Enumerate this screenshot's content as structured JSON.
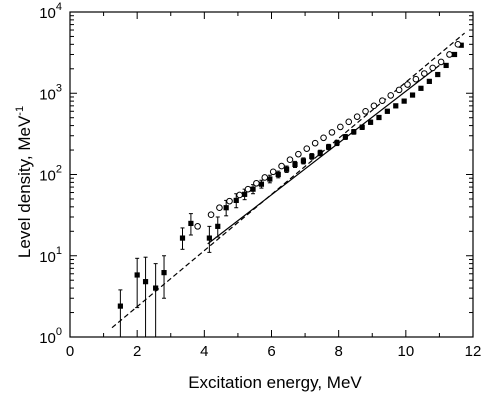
{
  "chart_data": {
    "type": "scatter",
    "xlabel": "Excitation energy, MeV",
    "ylabel_main": "Level density, MeV",
    "ylabel_exp": "-1",
    "xlim": [
      0,
      12
    ],
    "ylim": [
      1,
      10000
    ],
    "yscale": "log",
    "grid": false,
    "x_ticks": [
      {
        "value": 0,
        "label": "0"
      },
      {
        "value": 2,
        "label": "2"
      },
      {
        "value": 4,
        "label": "4"
      },
      {
        "value": 6,
        "label": "6"
      },
      {
        "value": 8,
        "label": "8"
      },
      {
        "value": 10,
        "label": "10"
      },
      {
        "value": 12,
        "label": "12"
      }
    ],
    "y_ticks": [
      {
        "value": 1,
        "base": "10",
        "exp": "0"
      },
      {
        "value": 10,
        "base": "10",
        "exp": "1"
      },
      {
        "value": 100,
        "base": "10",
        "exp": "2"
      },
      {
        "value": 1000,
        "base": "10",
        "exp": "3"
      },
      {
        "value": 10000,
        "base": "10",
        "exp": "4"
      }
    ],
    "series": [
      {
        "marker": "filled-square",
        "x": [
          1.5,
          2.0,
          2.25,
          2.55,
          2.8,
          3.35,
          3.6,
          4.15,
          4.4,
          4.65,
          4.95,
          5.2,
          5.45,
          5.7,
          5.95,
          6.2,
          6.45,
          6.7,
          6.95,
          7.2,
          7.45,
          7.7,
          7.95,
          8.2,
          8.45,
          8.7,
          8.95,
          9.2,
          9.45,
          9.7,
          9.95,
          10.2,
          10.45,
          10.7,
          10.95,
          11.2,
          11.45,
          11.65
        ],
        "y": [
          2.4,
          5.8,
          4.8,
          4.0,
          6.2,
          16.5,
          25,
          16.5,
          23,
          39,
          48,
          57,
          66,
          76,
          88,
          100,
          116,
          133,
          147,
          167,
          184,
          218,
          245,
          290,
          335,
          382,
          440,
          503,
          600,
          700,
          800,
          950,
          1150,
          1400,
          1700,
          2200,
          3000,
          3900
        ],
        "err_low": [
          1.4,
          3.5,
          4.8,
          4.0,
          3.2,
          4.5,
          7,
          5.5,
          6,
          8,
          9,
          8,
          8,
          8,
          9,
          9,
          10,
          11,
          12,
          13,
          14,
          16,
          18,
          20,
          22,
          24,
          26,
          28,
          32,
          36,
          40,
          45,
          50,
          60,
          70,
          80,
          100,
          120
        ],
        "err_high": [
          1.4,
          3.5,
          4.8,
          4.0,
          3.8,
          5.5,
          8,
          6.5,
          7,
          9,
          10,
          9,
          9,
          9,
          10,
          10,
          11,
          12,
          13,
          14,
          15,
          17,
          19,
          21,
          23,
          25,
          27,
          30,
          34,
          38,
          42,
          48,
          55,
          65,
          75,
          85,
          110,
          130
        ]
      },
      {
        "marker": "open-circle",
        "x": [
          3.8,
          4.2,
          4.45,
          4.75,
          5.05,
          5.3,
          5.55,
          5.8,
          6.05,
          6.3,
          6.55,
          6.8,
          7.05,
          7.3,
          7.55,
          7.8,
          8.05,
          8.3,
          8.55,
          8.8,
          9.05,
          9.3,
          9.55,
          9.8,
          10.05,
          10.3,
          10.55,
          10.8,
          11.05,
          11.3,
          11.55
        ],
        "y": [
          23,
          32,
          39,
          47,
          56,
          66,
          78,
          92,
          108,
          127,
          152,
          178,
          208,
          243,
          283,
          330,
          385,
          445,
          515,
          600,
          700,
          810,
          940,
          1100,
          1280,
          1490,
          1750,
          2050,
          2430,
          3000,
          4000
        ]
      },
      {
        "style": "solid-line",
        "x": [
          4.1,
          11.0
        ],
        "y": [
          14,
          2200
        ]
      },
      {
        "style": "dashed-line",
        "x": [
          1.25,
          11.75
        ],
        "y": [
          1.3,
          5500
        ]
      }
    ]
  }
}
